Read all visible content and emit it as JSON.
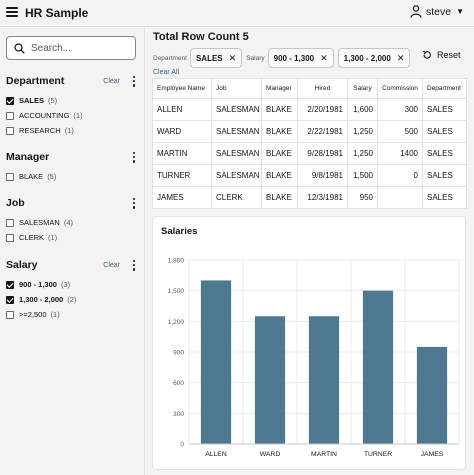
{
  "header": {
    "app_title": "HR Sample",
    "user_name": "steve"
  },
  "sidebar": {
    "search_placeholder": "Search...",
    "facets": [
      {
        "title": "Department",
        "clear": "Clear",
        "options": [
          {
            "label": "SALES",
            "count": "(5)",
            "checked": true
          },
          {
            "label": "ACCOUNTING",
            "count": "(1)",
            "checked": false
          },
          {
            "label": "RESEARCH",
            "count": "(1)",
            "checked": false
          }
        ]
      },
      {
        "title": "Manager",
        "options": [
          {
            "label": "BLAKE",
            "count": "(5)",
            "checked": false
          }
        ]
      },
      {
        "title": "Job",
        "options": [
          {
            "label": "SALESMAN",
            "count": "(4)",
            "checked": false
          },
          {
            "label": "CLERK",
            "count": "(1)",
            "checked": false
          }
        ]
      },
      {
        "title": "Salary",
        "clear": "Clear",
        "options": [
          {
            "label": "900 - 1,300",
            "count": "(3)",
            "checked": true
          },
          {
            "label": "1,300 - 2,000",
            "count": "(2)",
            "checked": true
          },
          {
            "label": ">=2,500",
            "count": "(1)",
            "checked": false
          }
        ]
      }
    ]
  },
  "main": {
    "title": "Total Row Count 5",
    "filters": {
      "department_label": "Department",
      "department_chips": [
        "SALES"
      ],
      "salary_label": "Salary",
      "salary_chips": [
        "900 - 1,300",
        "1,300 - 2,000"
      ]
    },
    "reset_label": "Reset",
    "clear_all_label": "Clear All",
    "table": {
      "columns": [
        "Employee Name",
        "Job",
        "Manager",
        "Hired",
        "Salary",
        "Commission",
        "Department"
      ],
      "rows": [
        [
          "ALLEN",
          "SALESMAN",
          "BLAKE",
          "2/20/1981",
          "1,600",
          "300",
          "SALES"
        ],
        [
          "WARD",
          "SALESMAN",
          "BLAKE",
          "2/22/1981",
          "1,250",
          "500",
          "SALES"
        ],
        [
          "MARTIN",
          "SALESMAN",
          "BLAKE",
          "9/28/1981",
          "1,250",
          "1400",
          "SALES"
        ],
        [
          "TURNER",
          "SALESMAN",
          "BLAKE",
          "9/8/1981",
          "1,500",
          "0",
          "SALES"
        ],
        [
          "JAMES",
          "CLERK",
          "BLAKE",
          "12/3/1981",
          "950",
          "",
          "SALES"
        ]
      ]
    }
  },
  "chart_data": {
    "type": "bar",
    "title": "Salaries",
    "categories": [
      "ALLEN",
      "WARD",
      "MARTIN",
      "TURNER",
      "JAMES"
    ],
    "values": [
      1600,
      1250,
      1250,
      1500,
      950
    ],
    "ylim": [
      0,
      1800
    ],
    "yticks": [
      "0",
      "300",
      "600",
      "900",
      "1,200",
      "1,500",
      "1,800"
    ],
    "bar_color": "#4f7891",
    "grid": true
  }
}
